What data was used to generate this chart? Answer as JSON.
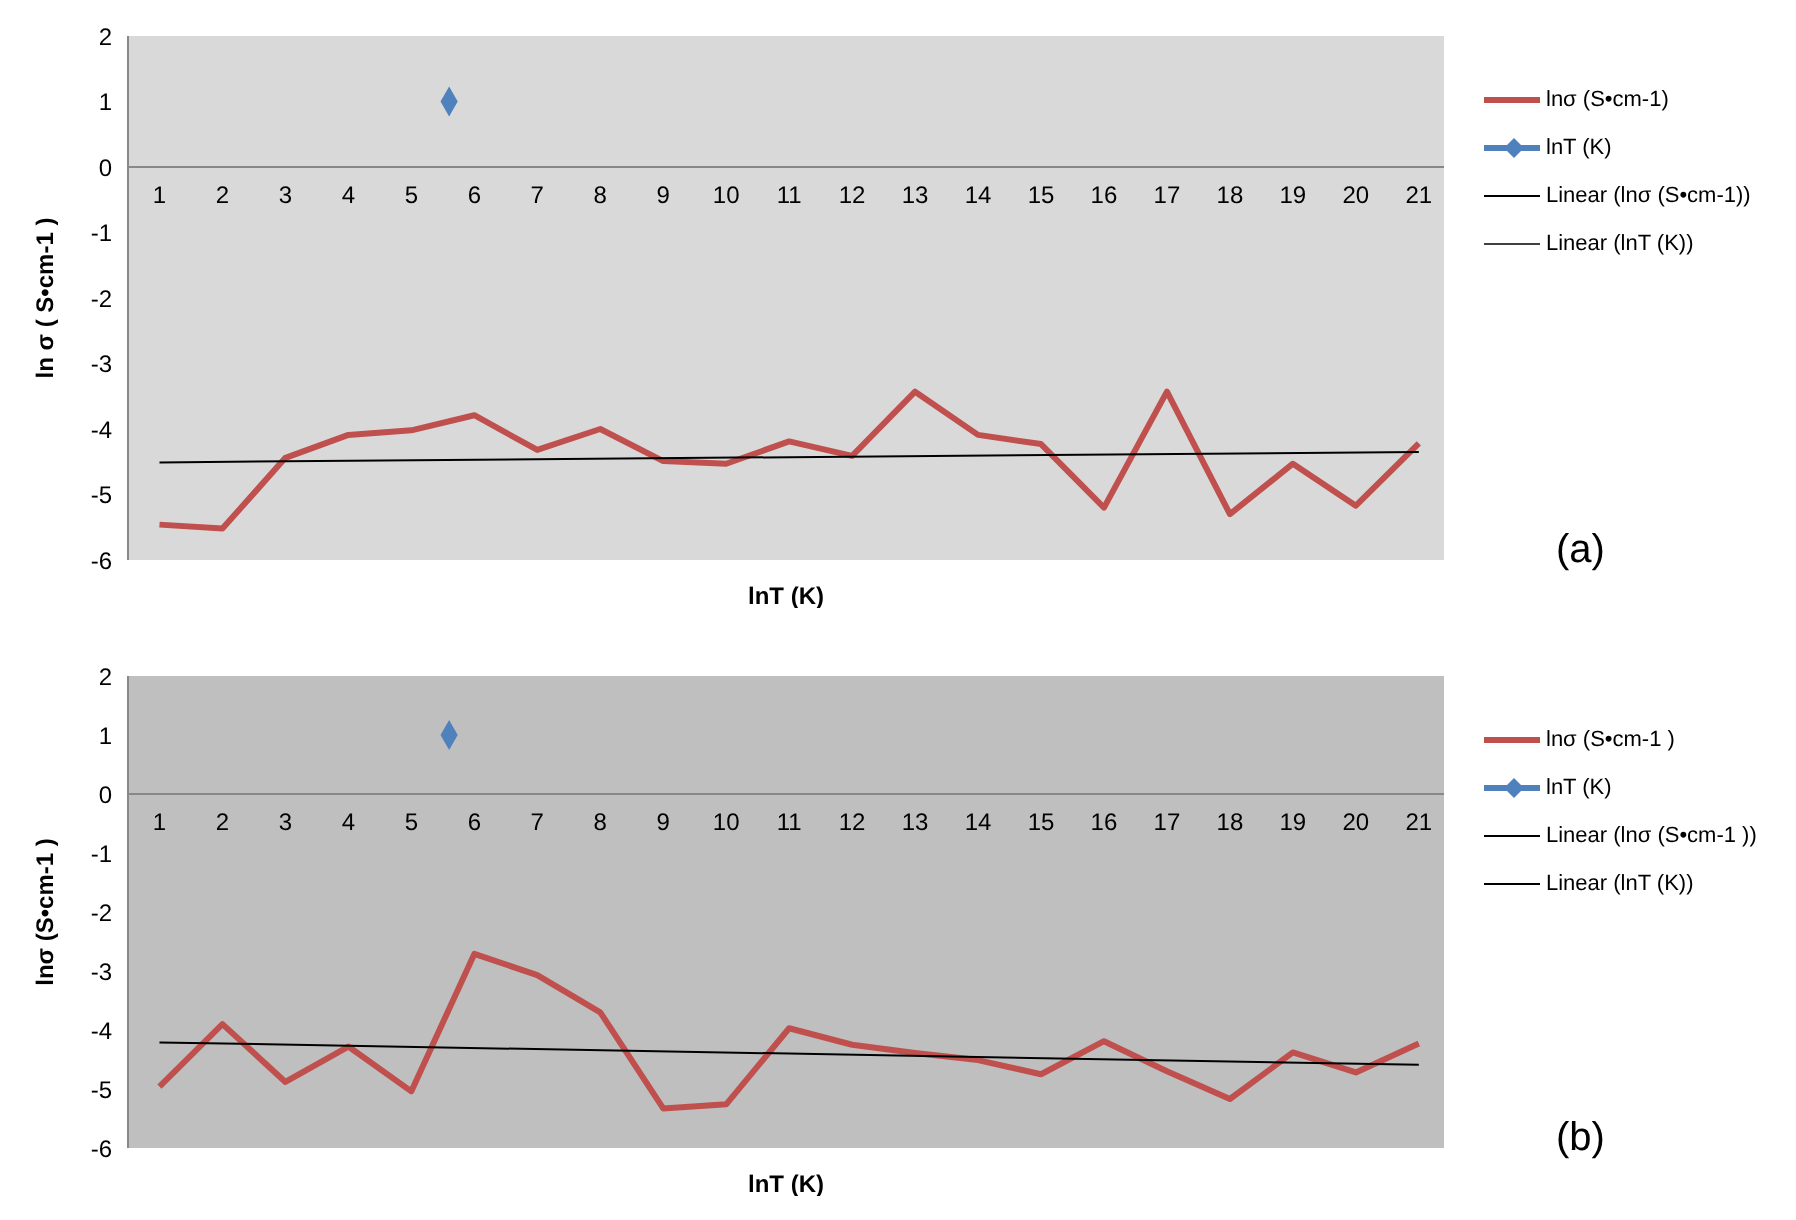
{
  "chart_data": [
    {
      "type": "line",
      "xlabel": "lnT (K)",
      "ylabel": "ln σ ( S•cm-1 )",
      "xlim": [
        0.5,
        21.4
      ],
      "xticks": [
        1,
        2,
        3,
        4,
        5,
        6,
        7,
        8,
        9,
        10,
        11,
        12,
        13,
        14,
        15,
        16,
        17,
        18,
        19,
        20,
        21
      ],
      "ylim": [
        -6,
        2
      ],
      "yticks": [
        -6,
        -5,
        -4,
        -3,
        -2,
        -1,
        0,
        1,
        2
      ],
      "legend": "right",
      "grid": false,
      "annotations": [
        "(a)"
      ],
      "series": [
        {
          "name": "lnσ (S•cm-1)",
          "color": "#c0504d",
          "marker": "none",
          "x": [
            1,
            2,
            3,
            4,
            5,
            6,
            7,
            8,
            9,
            10,
            11,
            12,
            13,
            14,
            15,
            16,
            17,
            18,
            19,
            20,
            21
          ],
          "values": [
            -5.46,
            -5.52,
            -4.44,
            -4.09,
            -4.02,
            -3.79,
            -4.32,
            -4.0,
            -4.49,
            -4.53,
            -4.19,
            -4.41,
            -3.43,
            -4.09,
            -4.23,
            -5.2,
            -3.43,
            -5.3,
            -4.53,
            -5.17,
            -4.22
          ]
        },
        {
          "name": "lnT (K)",
          "type": "scatter",
          "color": "#4f81bd",
          "marker": "diamond",
          "x": [
            5.6
          ],
          "values": [
            1
          ]
        },
        {
          "name": "Linear (lnσ (S•cm-1))",
          "color": "#000000",
          "marker": "none",
          "x": [
            1,
            21
          ],
          "values": [
            -4.51,
            -4.35
          ]
        },
        {
          "name": "Linear (lnT (K))",
          "color": "#404040",
          "marker": "none"
        }
      ]
    },
    {
      "type": "line",
      "xlabel": "lnT (K)",
      "ylabel": "lnσ (S•cm-1 )",
      "xlim": [
        0.5,
        21.4
      ],
      "xticks": [
        1,
        2,
        3,
        4,
        5,
        6,
        7,
        8,
        9,
        10,
        11,
        12,
        13,
        14,
        15,
        16,
        17,
        18,
        19,
        20,
        21
      ],
      "ylim": [
        -6,
        2
      ],
      "yticks": [
        -6,
        -5,
        -4,
        -3,
        -2,
        -1,
        0,
        1,
        2
      ],
      "legend": "right",
      "grid": false,
      "annotations": [
        "(b)"
      ],
      "series": [
        {
          "name": "lnσ (S•cm-1 )",
          "color": "#c0504d",
          "marker": "none",
          "x": [
            1,
            2,
            3,
            4,
            5,
            6,
            7,
            8,
            9,
            10,
            11,
            12,
            13,
            14,
            15,
            16,
            17,
            18,
            19,
            20,
            21
          ],
          "values": [
            -4.96,
            -3.9,
            -4.88,
            -4.28,
            -5.04,
            -2.71,
            -3.07,
            -3.7,
            -5.33,
            -5.26,
            -3.97,
            -4.25,
            -4.39,
            -4.51,
            -4.75,
            -4.19,
            -4.7,
            -5.17,
            -4.38,
            -4.72,
            -4.23
          ]
        },
        {
          "name": "lnT (K)",
          "type": "scatter",
          "color": "#4f81bd",
          "marker": "diamond",
          "x": [
            5.6
          ],
          "values": [
            1
          ]
        },
        {
          "name": "Linear (lnσ (S•cm-1 ))",
          "color": "#000000",
          "marker": "none",
          "x": [
            1,
            21
          ],
          "values": [
            -4.21,
            -4.59
          ]
        },
        {
          "name": "Linear (lnT (K))",
          "color": "#000000",
          "marker": "none"
        }
      ]
    }
  ]
}
